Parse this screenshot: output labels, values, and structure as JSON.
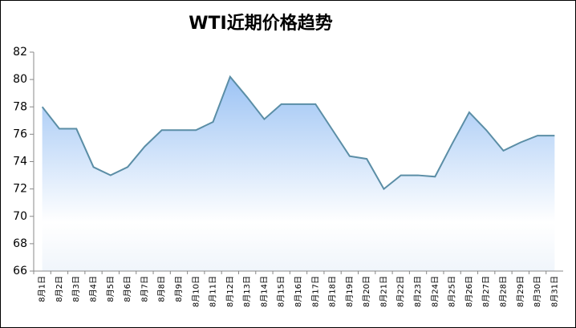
{
  "chart_data": {
    "type": "area",
    "title": "WTI近期价格趋势",
    "categories": [
      "8月1日",
      "8月2日",
      "8月3日",
      "8月4日",
      "8月5日",
      "8月6日",
      "8月7日",
      "8月8日",
      "8月9日",
      "8月10日",
      "8月11日",
      "8月12日",
      "8月13日",
      "8月14日",
      "8月15日",
      "8月16日",
      "8月17日",
      "8月18日",
      "8月19日",
      "8月20日",
      "8月21日",
      "8月22日",
      "8月23日",
      "8月24日",
      "8月25日",
      "8月26日",
      "8月27日",
      "8月28日",
      "8月29日",
      "8月30日",
      "8月31日"
    ],
    "values": [
      78.0,
      76.4,
      76.4,
      73.6,
      73.0,
      73.6,
      75.1,
      76.3,
      76.3,
      76.3,
      76.9,
      80.2,
      78.7,
      77.1,
      78.2,
      78.2,
      78.2,
      76.3,
      74.4,
      74.2,
      72.0,
      73.0,
      73.0,
      72.9,
      75.3,
      77.6,
      76.3,
      74.8,
      75.4,
      75.9,
      75.9
    ],
    "color": "#5b8ea6",
    "fill_color": "#9cc3f4",
    "ylim": [
      66,
      82
    ],
    "yticks": [
      66,
      68,
      70,
      72,
      74,
      76,
      78,
      80,
      82
    ],
    "grid": false
  }
}
